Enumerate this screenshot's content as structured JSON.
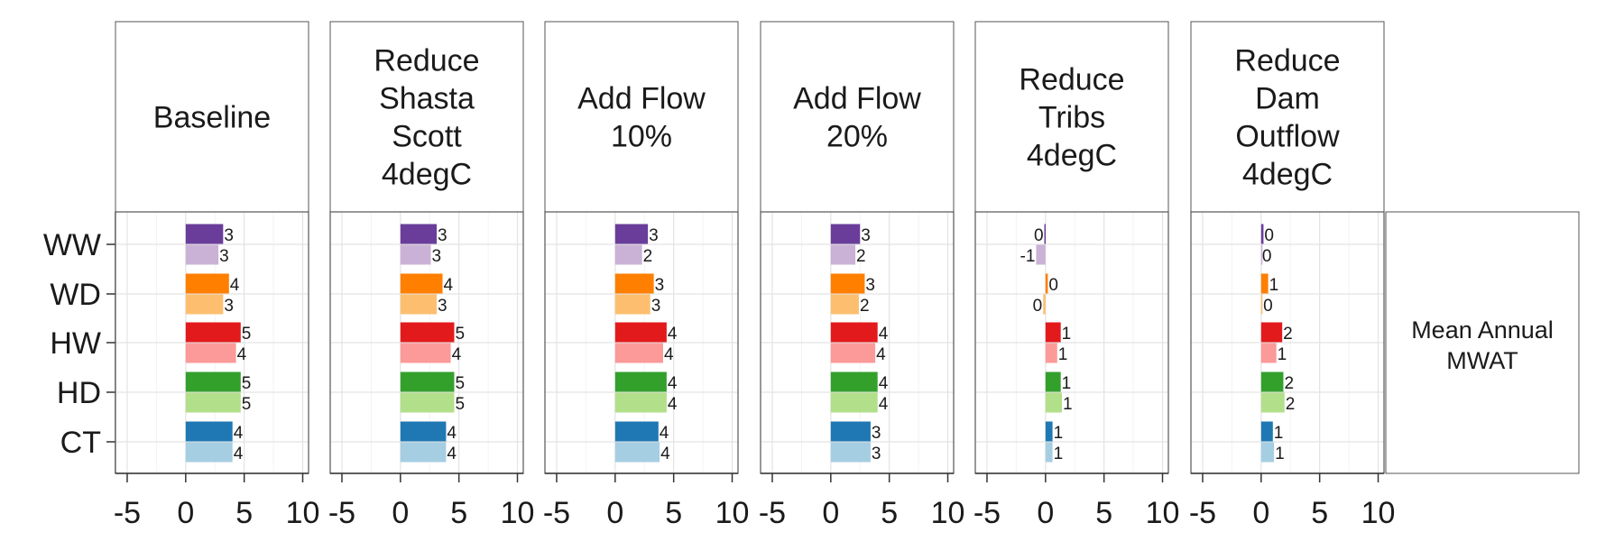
{
  "chart_data": {
    "type": "bar",
    "orientation": "horizontal",
    "categories": [
      "WW",
      "WD",
      "HW",
      "HD",
      "CT"
    ],
    "xlim": [
      -6,
      10.5
    ],
    "x_ticks": [
      -5,
      0,
      5,
      10
    ],
    "grid": true,
    "side_label": [
      "Mean Annual",
      "MWAT"
    ],
    "colors": {
      "WW": [
        "#6a3d9a",
        "#cab2d6"
      ],
      "WD": [
        "#ff7f00",
        "#fdbf6f"
      ],
      "HW": [
        "#e31a1c",
        "#fb9a99"
      ],
      "HD": [
        "#33a02c",
        "#b2df8a"
      ],
      "CT": [
        "#1f78b4",
        "#a6cee3"
      ]
    },
    "panels": [
      {
        "title_lines": [
          "Baseline"
        ],
        "values": {
          "WW": [
            3.2,
            2.8
          ],
          "WD": [
            3.7,
            3.2
          ],
          "HW": [
            4.7,
            4.3
          ],
          "HD": [
            4.7,
            4.7
          ],
          "CT": [
            4.0,
            4.0
          ]
        },
        "labels": {
          "WW": [
            "3",
            "3"
          ],
          "WD": [
            "4",
            "3"
          ],
          "HW": [
            "5",
            "4"
          ],
          "HD": [
            "5",
            "5"
          ],
          "CT": [
            "4",
            "4"
          ]
        }
      },
      {
        "title_lines": [
          "Reduce",
          "Shasta",
          "Scott",
          "4degC"
        ],
        "values": {
          "WW": [
            3.1,
            2.6
          ],
          "WD": [
            3.6,
            3.1
          ],
          "HW": [
            4.6,
            4.3
          ],
          "HD": [
            4.6,
            4.6
          ],
          "CT": [
            3.9,
            3.9
          ]
        },
        "labels": {
          "WW": [
            "3",
            "3"
          ],
          "WD": [
            "4",
            "3"
          ],
          "HW": [
            "5",
            "4"
          ],
          "HD": [
            "5",
            "5"
          ],
          "CT": [
            "4",
            "4"
          ]
        }
      },
      {
        "title_lines": [
          "Add Flow",
          "10%"
        ],
        "values": {
          "WW": [
            2.8,
            2.3
          ],
          "WD": [
            3.3,
            3.0
          ],
          "HW": [
            4.4,
            4.1
          ],
          "HD": [
            4.4,
            4.4
          ],
          "CT": [
            3.7,
            3.8
          ]
        },
        "labels": {
          "WW": [
            "3",
            "2"
          ],
          "WD": [
            "3",
            "3"
          ],
          "HW": [
            "4",
            "4"
          ],
          "HD": [
            "4",
            "4"
          ],
          "CT": [
            "4",
            "4"
          ]
        }
      },
      {
        "title_lines": [
          "Add Flow",
          "20%"
        ],
        "values": {
          "WW": [
            2.5,
            2.1
          ],
          "WD": [
            2.9,
            2.4
          ],
          "HW": [
            4.0,
            3.8
          ],
          "HD": [
            4.0,
            4.0
          ],
          "CT": [
            3.4,
            3.4
          ]
        },
        "labels": {
          "WW": [
            "3",
            "2"
          ],
          "WD": [
            "3",
            "2"
          ],
          "HW": [
            "4",
            "4"
          ],
          "HD": [
            "4",
            "4"
          ],
          "CT": [
            "3",
            "3"
          ]
        }
      },
      {
        "title_lines": [
          "Reduce",
          "Tribs",
          "4degC"
        ],
        "values": {
          "WW": [
            -0.1,
            -0.8
          ],
          "WD": [
            0.2,
            -0.2
          ],
          "HW": [
            1.3,
            1.0
          ],
          "HD": [
            1.3,
            1.4
          ],
          "CT": [
            0.6,
            0.6
          ]
        },
        "labels": {
          "WW": [
            "0",
            "-1"
          ],
          "WD": [
            "0",
            "0"
          ],
          "HW": [
            "1",
            "1"
          ],
          "HD": [
            "1",
            "1"
          ],
          "CT": [
            "1",
            "1"
          ]
        }
      },
      {
        "title_lines": [
          "Reduce",
          "Dam",
          "Outflow",
          "4degC"
        ],
        "values": {
          "WW": [
            0.2,
            0.0
          ],
          "WD": [
            0.6,
            0.1
          ],
          "HW": [
            1.8,
            1.3
          ],
          "HD": [
            1.9,
            2.0
          ],
          "CT": [
            1.0,
            1.1
          ]
        },
        "labels": {
          "WW": [
            "0",
            "0"
          ],
          "WD": [
            "1",
            "0"
          ],
          "HW": [
            "2",
            "1"
          ],
          "HD": [
            "2",
            "2"
          ],
          "CT": [
            "1",
            "1"
          ]
        }
      }
    ]
  }
}
